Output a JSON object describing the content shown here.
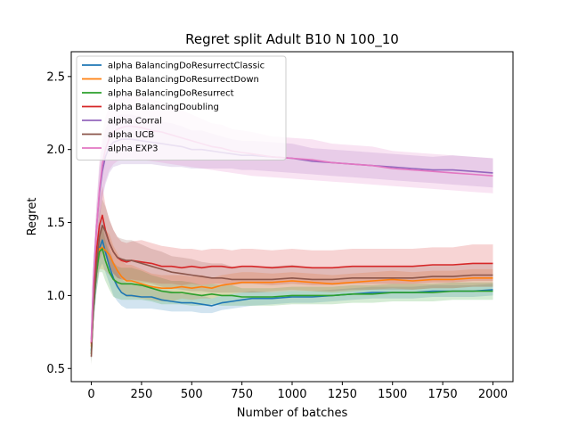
{
  "chart_data": {
    "type": "line",
    "title": "Regret split Adult B10 N 100_10",
    "xlabel": "Number of batches",
    "ylabel": "Regret",
    "xlim": [
      -100,
      2100
    ],
    "ylim": [
      0.41,
      2.67
    ],
    "xticks": [
      0,
      250,
      500,
      750,
      1000,
      1250,
      1500,
      1750,
      2000
    ],
    "yticks": [
      0.5,
      1.0,
      1.5,
      2.0,
      2.5
    ],
    "xtick_labels": [
      "0",
      "250",
      "500",
      "750",
      "1000",
      "1250",
      "1500",
      "1750",
      "2000"
    ],
    "ytick_labels": [
      "0.5",
      "1.0",
      "1.5",
      "2.0",
      "2.5"
    ],
    "grid": false,
    "legend_position": "top-left",
    "series": [
      {
        "name": "alpha BalancingDoResurrectClassic",
        "color": "#1f77b4",
        "x": [
          0,
          10,
          25,
          40,
          55,
          70,
          90,
          110,
          130,
          150,
          175,
          200,
          250,
          300,
          350,
          400,
          450,
          500,
          550,
          600,
          650,
          700,
          750,
          800,
          900,
          1000,
          1100,
          1200,
          1300,
          1400,
          1500,
          1600,
          1700,
          1800,
          1900,
          2000
        ],
        "y": [
          0.62,
          0.9,
          1.15,
          1.32,
          1.38,
          1.3,
          1.2,
          1.12,
          1.06,
          1.02,
          1.0,
          1.0,
          0.99,
          0.99,
          0.97,
          0.96,
          0.95,
          0.95,
          0.94,
          0.93,
          0.95,
          0.96,
          0.97,
          0.98,
          0.98,
          0.99,
          0.99,
          1.0,
          1.01,
          1.02,
          1.02,
          1.02,
          1.03,
          1.03,
          1.03,
          1.04
        ],
        "lower": [
          0.55,
          0.8,
          1.02,
          1.18,
          1.22,
          1.16,
          1.08,
          1.0,
          0.96,
          0.93,
          0.91,
          0.91,
          0.91,
          0.91,
          0.9,
          0.89,
          0.89,
          0.89,
          0.88,
          0.88,
          0.9,
          0.91,
          0.92,
          0.93,
          0.94,
          0.95,
          0.95,
          0.96,
          0.97,
          0.98,
          0.98,
          0.98,
          0.99,
          0.99,
          0.99,
          1.0
        ],
        "upper": [
          0.7,
          1.0,
          1.28,
          1.46,
          1.54,
          1.44,
          1.32,
          1.24,
          1.16,
          1.11,
          1.09,
          1.09,
          1.07,
          1.07,
          1.04,
          1.03,
          1.01,
          1.01,
          1.0,
          0.98,
          1.0,
          1.01,
          1.02,
          1.03,
          1.02,
          1.03,
          1.03,
          1.04,
          1.05,
          1.06,
          1.06,
          1.06,
          1.07,
          1.07,
          1.07,
          1.08
        ]
      },
      {
        "name": "alpha BalancingDoResurrectDown",
        "color": "#ff7f0e",
        "x": [
          0,
          10,
          25,
          40,
          55,
          70,
          90,
          110,
          130,
          150,
          175,
          200,
          250,
          300,
          350,
          400,
          450,
          500,
          550,
          600,
          650,
          700,
          750,
          800,
          900,
          1000,
          1100,
          1200,
          1300,
          1400,
          1500,
          1600,
          1700,
          1800,
          1900,
          2000
        ],
        "y": [
          0.65,
          0.95,
          1.2,
          1.32,
          1.33,
          1.31,
          1.28,
          1.22,
          1.17,
          1.13,
          1.1,
          1.1,
          1.08,
          1.06,
          1.05,
          1.05,
          1.06,
          1.05,
          1.06,
          1.05,
          1.07,
          1.08,
          1.09,
          1.09,
          1.09,
          1.1,
          1.09,
          1.08,
          1.09,
          1.1,
          1.11,
          1.1,
          1.11,
          1.11,
          1.12,
          1.12
        ],
        "lower": [
          0.58,
          0.85,
          1.08,
          1.18,
          1.18,
          1.17,
          1.14,
          1.1,
          1.05,
          1.02,
          0.99,
          0.99,
          0.98,
          0.97,
          0.96,
          0.96,
          0.98,
          0.97,
          0.98,
          0.98,
          1.0,
          1.01,
          1.02,
          1.02,
          1.03,
          1.04,
          1.03,
          1.02,
          1.03,
          1.04,
          1.05,
          1.04,
          1.05,
          1.05,
          1.06,
          1.06
        ],
        "upper": [
          0.72,
          1.05,
          1.32,
          1.46,
          1.48,
          1.45,
          1.42,
          1.34,
          1.29,
          1.24,
          1.21,
          1.21,
          1.18,
          1.15,
          1.14,
          1.14,
          1.14,
          1.13,
          1.14,
          1.12,
          1.14,
          1.15,
          1.16,
          1.16,
          1.15,
          1.16,
          1.15,
          1.14,
          1.15,
          1.16,
          1.17,
          1.16,
          1.17,
          1.17,
          1.18,
          1.18
        ]
      },
      {
        "name": "alpha BalancingDoResurrect",
        "color": "#2ca02c",
        "x": [
          0,
          10,
          25,
          40,
          55,
          70,
          90,
          110,
          130,
          150,
          175,
          200,
          250,
          300,
          350,
          400,
          450,
          500,
          550,
          600,
          650,
          700,
          750,
          800,
          900,
          1000,
          1100,
          1200,
          1300,
          1400,
          1500,
          1600,
          1700,
          1800,
          1900,
          2000
        ],
        "y": [
          0.6,
          0.9,
          1.15,
          1.3,
          1.32,
          1.24,
          1.16,
          1.11,
          1.09,
          1.08,
          1.08,
          1.08,
          1.07,
          1.05,
          1.03,
          1.02,
          1.02,
          1.01,
          1.0,
          1.01,
          1.0,
          1.0,
          0.99,
          0.99,
          0.99,
          1.0,
          1.0,
          1.0,
          1.01,
          1.01,
          1.02,
          1.02,
          1.02,
          1.03,
          1.03,
          1.03
        ],
        "lower": [
          0.53,
          0.8,
          1.02,
          1.16,
          1.16,
          1.1,
          1.04,
          0.99,
          0.98,
          0.97,
          0.97,
          0.97,
          0.97,
          0.96,
          0.94,
          0.94,
          0.94,
          0.93,
          0.93,
          0.94,
          0.93,
          0.93,
          0.93,
          0.93,
          0.93,
          0.94,
          0.94,
          0.94,
          0.95,
          0.95,
          0.96,
          0.96,
          0.96,
          0.97,
          0.97,
          0.97
        ],
        "upper": [
          0.67,
          1.0,
          1.28,
          1.44,
          1.48,
          1.38,
          1.28,
          1.23,
          1.2,
          1.19,
          1.19,
          1.19,
          1.17,
          1.14,
          1.12,
          1.1,
          1.1,
          1.09,
          1.07,
          1.08,
          1.07,
          1.07,
          1.05,
          1.05,
          1.05,
          1.06,
          1.06,
          1.06,
          1.07,
          1.07,
          1.08,
          1.08,
          1.08,
          1.09,
          1.09,
          1.09
        ]
      },
      {
        "name": "alpha BalancingDoubling",
        "color": "#d62728",
        "x": [
          0,
          10,
          25,
          40,
          55,
          70,
          90,
          110,
          130,
          150,
          175,
          200,
          250,
          300,
          350,
          400,
          450,
          500,
          550,
          600,
          650,
          700,
          750,
          800,
          900,
          1000,
          1100,
          1200,
          1300,
          1400,
          1500,
          1600,
          1700,
          1800,
          1900,
          2000
        ],
        "y": [
          0.67,
          1.0,
          1.3,
          1.48,
          1.55,
          1.45,
          1.36,
          1.3,
          1.26,
          1.24,
          1.23,
          1.24,
          1.23,
          1.22,
          1.2,
          1.2,
          1.19,
          1.2,
          1.19,
          1.2,
          1.2,
          1.19,
          1.2,
          1.2,
          1.19,
          1.2,
          1.19,
          1.19,
          1.2,
          1.2,
          1.2,
          1.2,
          1.21,
          1.21,
          1.22,
          1.22
        ],
        "lower": [
          0.6,
          0.88,
          1.14,
          1.3,
          1.35,
          1.28,
          1.2,
          1.15,
          1.12,
          1.11,
          1.1,
          1.11,
          1.1,
          1.09,
          1.08,
          1.08,
          1.07,
          1.08,
          1.07,
          1.08,
          1.08,
          1.07,
          1.08,
          1.08,
          1.07,
          1.08,
          1.07,
          1.07,
          1.08,
          1.08,
          1.08,
          1.08,
          1.09,
          1.09,
          1.1,
          1.1
        ],
        "upper": [
          0.74,
          1.12,
          1.46,
          1.66,
          1.75,
          1.62,
          1.52,
          1.45,
          1.4,
          1.37,
          1.36,
          1.37,
          1.38,
          1.36,
          1.34,
          1.33,
          1.32,
          1.32,
          1.31,
          1.32,
          1.32,
          1.31,
          1.32,
          1.32,
          1.31,
          1.32,
          1.31,
          1.31,
          1.32,
          1.32,
          1.32,
          1.32,
          1.33,
          1.33,
          1.35,
          1.35
        ]
      },
      {
        "name": "alpha Corral",
        "color": "#9467bd",
        "x": [
          0,
          10,
          25,
          40,
          55,
          70,
          90,
          110,
          130,
          150,
          175,
          200,
          250,
          300,
          350,
          400,
          450,
          500,
          550,
          600,
          650,
          700,
          750,
          800,
          900,
          1000,
          1100,
          1200,
          1300,
          1400,
          1500,
          1600,
          1700,
          1800,
          1900,
          2000
        ],
        "y": [
          0.7,
          1.1,
          1.45,
          1.7,
          1.85,
          1.95,
          2.02,
          2.05,
          2.06,
          2.07,
          2.07,
          2.07,
          2.06,
          2.05,
          2.04,
          2.03,
          2.02,
          2.0,
          2.0,
          1.99,
          1.98,
          1.97,
          1.96,
          1.96,
          1.95,
          1.94,
          1.92,
          1.91,
          1.9,
          1.89,
          1.88,
          1.87,
          1.86,
          1.86,
          1.85,
          1.84
        ],
        "lower": [
          0.6,
          0.98,
          1.3,
          1.52,
          1.66,
          1.76,
          1.84,
          1.88,
          1.89,
          1.9,
          1.9,
          1.9,
          1.9,
          1.9,
          1.89,
          1.88,
          1.88,
          1.87,
          1.87,
          1.87,
          1.87,
          1.87,
          1.86,
          1.86,
          1.85,
          1.84,
          1.83,
          1.82,
          1.81,
          1.8,
          1.79,
          1.78,
          1.77,
          1.76,
          1.75,
          1.74
        ],
        "upper": [
          0.8,
          1.22,
          1.6,
          1.88,
          2.04,
          2.14,
          2.2,
          2.22,
          2.23,
          2.24,
          2.24,
          2.24,
          2.22,
          2.2,
          2.19,
          2.18,
          2.16,
          2.13,
          2.13,
          2.11,
          2.09,
          2.07,
          2.06,
          2.06,
          2.05,
          2.04,
          2.01,
          2.0,
          1.99,
          1.98,
          1.97,
          1.96,
          1.95,
          1.96,
          1.95,
          1.94
        ]
      },
      {
        "name": "alpha UCB",
        "color": "#8c564b",
        "x": [
          0,
          10,
          25,
          40,
          55,
          70,
          90,
          110,
          130,
          150,
          175,
          200,
          250,
          300,
          350,
          400,
          450,
          500,
          550,
          600,
          650,
          700,
          750,
          800,
          900,
          1000,
          1100,
          1200,
          1300,
          1400,
          1500,
          1600,
          1700,
          1800,
          1900,
          2000
        ],
        "y": [
          0.58,
          0.9,
          1.2,
          1.4,
          1.48,
          1.44,
          1.36,
          1.3,
          1.26,
          1.25,
          1.24,
          1.24,
          1.22,
          1.2,
          1.18,
          1.16,
          1.15,
          1.14,
          1.13,
          1.12,
          1.12,
          1.11,
          1.11,
          1.11,
          1.11,
          1.12,
          1.11,
          1.11,
          1.12,
          1.12,
          1.12,
          1.12,
          1.13,
          1.13,
          1.14,
          1.14
        ],
        "lower": [
          0.52,
          0.8,
          1.06,
          1.24,
          1.3,
          1.27,
          1.2,
          1.15,
          1.12,
          1.11,
          1.1,
          1.1,
          1.09,
          1.08,
          1.06,
          1.05,
          1.04,
          1.03,
          1.03,
          1.02,
          1.02,
          1.02,
          1.02,
          1.02,
          1.02,
          1.03,
          1.03,
          1.03,
          1.04,
          1.04,
          1.04,
          1.04,
          1.05,
          1.05,
          1.06,
          1.06
        ],
        "upper": [
          0.64,
          1.0,
          1.34,
          1.56,
          1.66,
          1.61,
          1.52,
          1.45,
          1.4,
          1.39,
          1.38,
          1.38,
          1.35,
          1.32,
          1.3,
          1.27,
          1.26,
          1.25,
          1.23,
          1.22,
          1.22,
          1.2,
          1.2,
          1.2,
          1.2,
          1.21,
          1.19,
          1.19,
          1.2,
          1.2,
          1.2,
          1.2,
          1.21,
          1.21,
          1.22,
          1.22
        ]
      },
      {
        "name": "alpha EXP3",
        "color": "#e377c2",
        "x": [
          0,
          10,
          25,
          40,
          55,
          70,
          90,
          110,
          130,
          150,
          175,
          200,
          250,
          300,
          350,
          400,
          450,
          500,
          550,
          600,
          650,
          700,
          750,
          800,
          900,
          1000,
          1100,
          1200,
          1300,
          1400,
          1500,
          1600,
          1700,
          1800,
          1900,
          2000
        ],
        "y": [
          0.68,
          1.08,
          1.45,
          1.72,
          1.9,
          2.0,
          2.08,
          2.12,
          2.14,
          2.15,
          2.16,
          2.16,
          2.15,
          2.13,
          2.12,
          2.1,
          2.08,
          2.06,
          2.04,
          2.02,
          2.01,
          1.99,
          1.98,
          1.97,
          1.95,
          1.94,
          1.93,
          1.91,
          1.9,
          1.89,
          1.87,
          1.86,
          1.85,
          1.84,
          1.83,
          1.82
        ],
        "lower": [
          0.58,
          0.94,
          1.28,
          1.52,
          1.68,
          1.78,
          1.86,
          1.9,
          1.92,
          1.93,
          1.94,
          1.94,
          1.93,
          1.92,
          1.91,
          1.9,
          1.89,
          1.88,
          1.87,
          1.86,
          1.85,
          1.84,
          1.83,
          1.82,
          1.81,
          1.8,
          1.79,
          1.78,
          1.77,
          1.76,
          1.75,
          1.74,
          1.73,
          1.72,
          1.71,
          1.7
        ],
        "upper": [
          0.78,
          1.22,
          1.62,
          1.92,
          2.12,
          2.22,
          2.3,
          2.34,
          2.36,
          2.37,
          2.38,
          2.38,
          2.37,
          2.34,
          2.33,
          2.3,
          2.27,
          2.24,
          2.21,
          2.18,
          2.17,
          2.14,
          2.13,
          2.12,
          2.09,
          2.08,
          2.07,
          2.04,
          2.03,
          2.02,
          1.99,
          1.98,
          1.97,
          1.96,
          1.95,
          1.94
        ]
      }
    ]
  }
}
